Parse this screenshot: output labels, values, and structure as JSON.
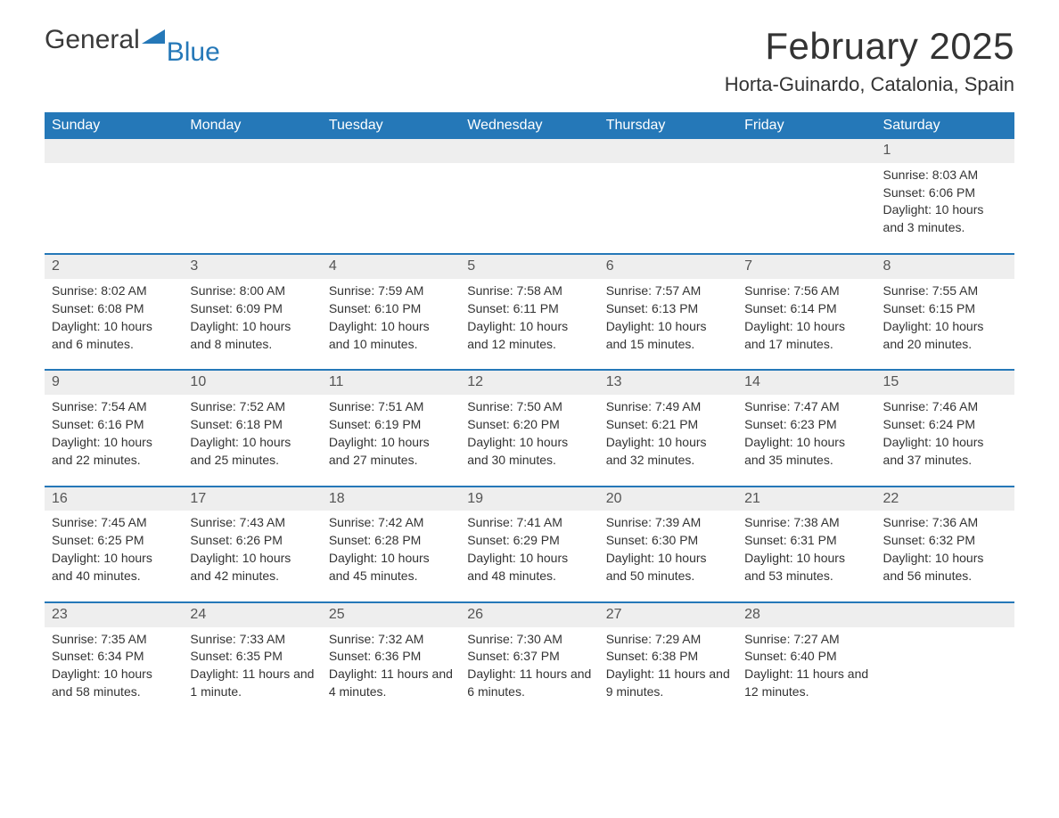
{
  "logo": {
    "text_general": "General",
    "text_blue": "Blue"
  },
  "header": {
    "month_title": "February 2025",
    "location": "Horta-Guinardo, Catalonia, Spain"
  },
  "colors": {
    "header_bg": "#2578b8",
    "header_text": "#ffffff",
    "daynum_bg": "#eeeeee",
    "daynum_border": "#2578b8",
    "body_text": "#333333",
    "page_bg": "#ffffff",
    "logo_blue": "#2578b8"
  },
  "day_names": [
    "Sunday",
    "Monday",
    "Tuesday",
    "Wednesday",
    "Thursday",
    "Friday",
    "Saturday"
  ],
  "weeks": [
    {
      "nums": [
        "",
        "",
        "",
        "",
        "",
        "",
        "1"
      ],
      "cells": [
        "",
        "",
        "",
        "",
        "",
        "",
        "Sunrise: 8:03 AM|Sunset: 6:06 PM|Daylight: 10 hours and 3 minutes."
      ]
    },
    {
      "nums": [
        "2",
        "3",
        "4",
        "5",
        "6",
        "7",
        "8"
      ],
      "cells": [
        "Sunrise: 8:02 AM|Sunset: 6:08 PM|Daylight: 10 hours and 6 minutes.",
        "Sunrise: 8:00 AM|Sunset: 6:09 PM|Daylight: 10 hours and 8 minutes.",
        "Sunrise: 7:59 AM|Sunset: 6:10 PM|Daylight: 10 hours and 10 minutes.",
        "Sunrise: 7:58 AM|Sunset: 6:11 PM|Daylight: 10 hours and 12 minutes.",
        "Sunrise: 7:57 AM|Sunset: 6:13 PM|Daylight: 10 hours and 15 minutes.",
        "Sunrise: 7:56 AM|Sunset: 6:14 PM|Daylight: 10 hours and 17 minutes.",
        "Sunrise: 7:55 AM|Sunset: 6:15 PM|Daylight: 10 hours and 20 minutes."
      ]
    },
    {
      "nums": [
        "9",
        "10",
        "11",
        "12",
        "13",
        "14",
        "15"
      ],
      "cells": [
        "Sunrise: 7:54 AM|Sunset: 6:16 PM|Daylight: 10 hours and 22 minutes.",
        "Sunrise: 7:52 AM|Sunset: 6:18 PM|Daylight: 10 hours and 25 minutes.",
        "Sunrise: 7:51 AM|Sunset: 6:19 PM|Daylight: 10 hours and 27 minutes.",
        "Sunrise: 7:50 AM|Sunset: 6:20 PM|Daylight: 10 hours and 30 minutes.",
        "Sunrise: 7:49 AM|Sunset: 6:21 PM|Daylight: 10 hours and 32 minutes.",
        "Sunrise: 7:47 AM|Sunset: 6:23 PM|Daylight: 10 hours and 35 minutes.",
        "Sunrise: 7:46 AM|Sunset: 6:24 PM|Daylight: 10 hours and 37 minutes."
      ]
    },
    {
      "nums": [
        "16",
        "17",
        "18",
        "19",
        "20",
        "21",
        "22"
      ],
      "cells": [
        "Sunrise: 7:45 AM|Sunset: 6:25 PM|Daylight: 10 hours and 40 minutes.",
        "Sunrise: 7:43 AM|Sunset: 6:26 PM|Daylight: 10 hours and 42 minutes.",
        "Sunrise: 7:42 AM|Sunset: 6:28 PM|Daylight: 10 hours and 45 minutes.",
        "Sunrise: 7:41 AM|Sunset: 6:29 PM|Daylight: 10 hours and 48 minutes.",
        "Sunrise: 7:39 AM|Sunset: 6:30 PM|Daylight: 10 hours and 50 minutes.",
        "Sunrise: 7:38 AM|Sunset: 6:31 PM|Daylight: 10 hours and 53 minutes.",
        "Sunrise: 7:36 AM|Sunset: 6:32 PM|Daylight: 10 hours and 56 minutes."
      ]
    },
    {
      "nums": [
        "23",
        "24",
        "25",
        "26",
        "27",
        "28",
        ""
      ],
      "cells": [
        "Sunrise: 7:35 AM|Sunset: 6:34 PM|Daylight: 10 hours and 58 minutes.",
        "Sunrise: 7:33 AM|Sunset: 6:35 PM|Daylight: 11 hours and 1 minute.",
        "Sunrise: 7:32 AM|Sunset: 6:36 PM|Daylight: 11 hours and 4 minutes.",
        "Sunrise: 7:30 AM|Sunset: 6:37 PM|Daylight: 11 hours and 6 minutes.",
        "Sunrise: 7:29 AM|Sunset: 6:38 PM|Daylight: 11 hours and 9 minutes.",
        "Sunrise: 7:27 AM|Sunset: 6:40 PM|Daylight: 11 hours and 12 minutes.",
        ""
      ]
    }
  ]
}
